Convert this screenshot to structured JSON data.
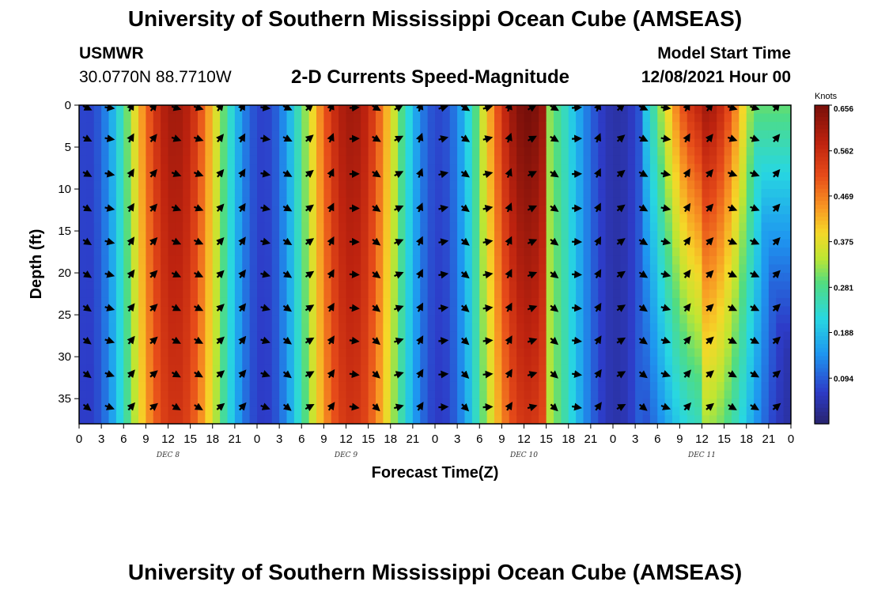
{
  "header": {
    "title": "University of Southern Mississippi Ocean Cube (AMSEAS)",
    "station": "USMWR",
    "coords": "30.0770N  88.7710W",
    "subtitle": "2-D Currents Speed-Magnitude",
    "model_label": "Model Start Time",
    "model_date": "12/08/2021 Hour 00"
  },
  "footer": {
    "title": "University of Southern Mississippi Ocean Cube (AMSEAS)"
  },
  "chart_data": {
    "type": "heatmap",
    "title": "2-D Currents Speed-Magnitude",
    "xlabel": "Forecast Time(Z)",
    "ylabel": "Depth (ft)",
    "x_unit": "hours since 12/08/2021 00Z",
    "xlim": [
      0,
      96
    ],
    "ylim": [
      0,
      38
    ],
    "x_tick_labels": [
      "0",
      "3",
      "6",
      "9",
      "12",
      "15",
      "18",
      "21",
      "0",
      "3",
      "6",
      "9",
      "12",
      "15",
      "18",
      "21",
      "0",
      "3",
      "6",
      "9",
      "12",
      "15",
      "18",
      "21",
      "0",
      "3",
      "6",
      "9",
      "12",
      "15",
      "18",
      "21",
      "0"
    ],
    "y_ticks": [
      0,
      5,
      10,
      15,
      20,
      25,
      30,
      35
    ],
    "day_labels": [
      {
        "text": "DEC 8",
        "hour": 12
      },
      {
        "text": "DEC 9",
        "hour": 36
      },
      {
        "text": "DEC 10",
        "hour": 60
      },
      {
        "text": "DEC 11",
        "hour": 84
      }
    ],
    "colorbar": {
      "unit": "Knots",
      "range": [
        0,
        0.656
      ],
      "tick_values": [
        0.656,
        0.562,
        0.469,
        0.375,
        0.281,
        0.188,
        0.094
      ],
      "tick_labels": [
        "0.656",
        "0.562",
        "0.469",
        "0.375",
        "0.281",
        "0.188",
        "0.094"
      ]
    },
    "vector_depths": [
      0.3,
      4,
      8.2,
      12.3,
      16.3,
      20.2,
      24.2,
      28.1,
      32.1,
      36
    ]
  }
}
